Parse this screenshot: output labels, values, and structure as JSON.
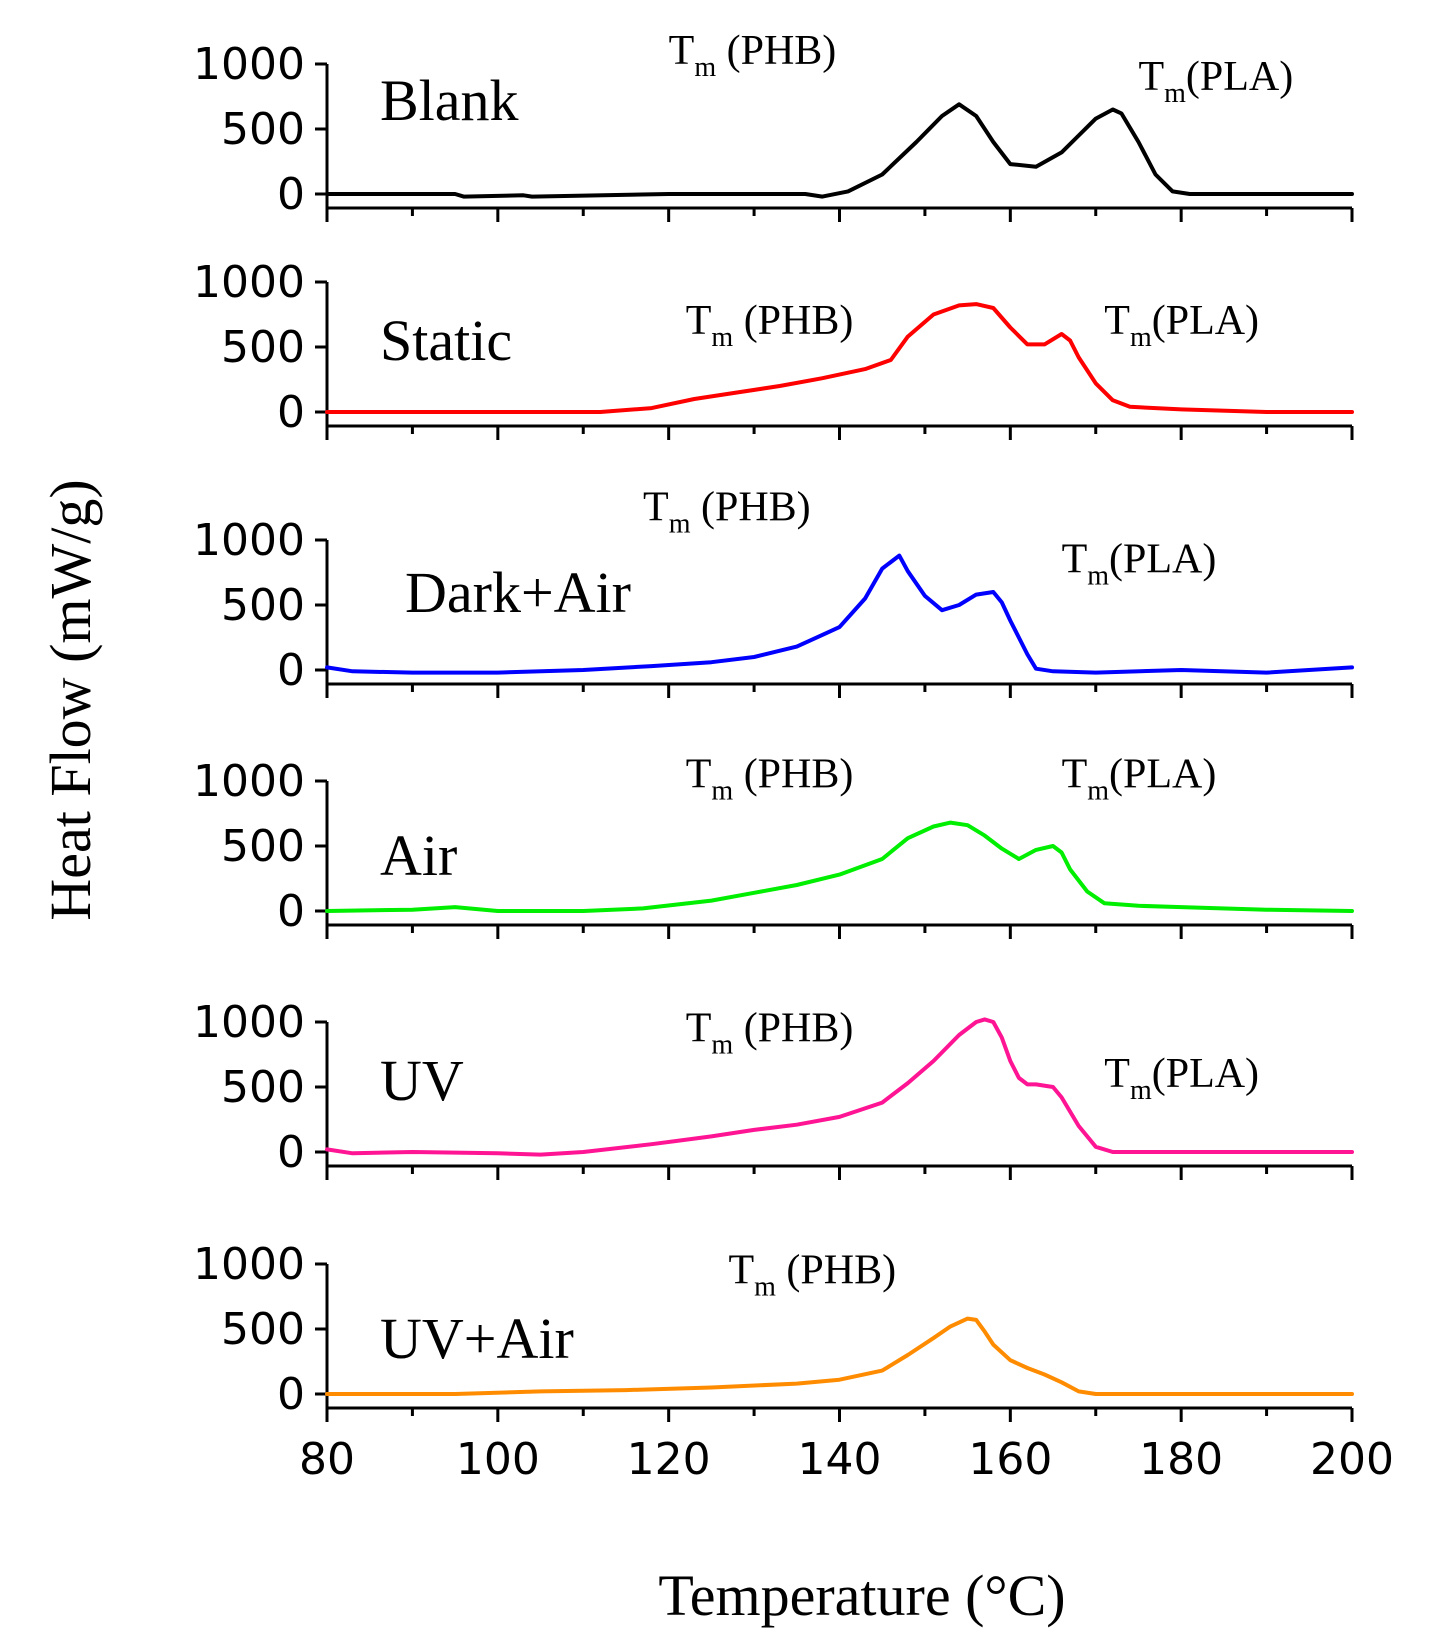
{
  "chart_data": {
    "type": "line",
    "layout": "stacked-panels",
    "xlabel": "Temperature (°C)",
    "ylabel": "Heat Flow (mW/g)",
    "xlim": [
      80,
      200
    ],
    "x_ticks": [
      "80",
      "100",
      "120",
      "140",
      "160",
      "180",
      "200"
    ],
    "y_ticks": [
      "0",
      "500",
      "1000"
    ],
    "annotation_sub": "m",
    "panels": [
      {
        "name": "Blank",
        "color": "#000000",
        "ylim": [
          -100,
          1000
        ],
        "annotations": [
          {
            "base": "T",
            "text": " (PHB)",
            "at_x": 120,
            "at_y": 1000
          },
          {
            "base": "T",
            "text": "(PLA)",
            "at_x": 175,
            "at_y": 800
          }
        ],
        "x": [
          80,
          95,
          96,
          103,
          104,
          120,
          136,
          138,
          141,
          145,
          149,
          152,
          154,
          156,
          158,
          160,
          163,
          166,
          168,
          170,
          172,
          173,
          175,
          177,
          179,
          181,
          200
        ],
        "y": [
          0,
          0,
          -20,
          -10,
          -20,
          0,
          0,
          -20,
          20,
          150,
          400,
          600,
          690,
          600,
          400,
          230,
          210,
          320,
          450,
          580,
          650,
          620,
          400,
          150,
          20,
          0,
          0
        ]
      },
      {
        "name": "Static",
        "color": "#ff0000",
        "ylim": [
          -100,
          1000
        ],
        "annotations": [
          {
            "base": "T",
            "text": " (PHB)",
            "at_x": 122,
            "at_y": 600
          },
          {
            "base": "T",
            "text": "(PLA)",
            "at_x": 171,
            "at_y": 600
          }
        ],
        "x": [
          80,
          95,
          112,
          118,
          123,
          128,
          133,
          138,
          143,
          146,
          148,
          151,
          154,
          156,
          158,
          160,
          162,
          164,
          166,
          167,
          168,
          170,
          172,
          174,
          180,
          190,
          200
        ],
        "y": [
          0,
          0,
          0,
          30,
          100,
          150,
          200,
          260,
          330,
          400,
          580,
          750,
          820,
          830,
          800,
          650,
          520,
          520,
          600,
          550,
          420,
          220,
          90,
          40,
          20,
          0,
          0
        ]
      },
      {
        "name": "Dark+Air",
        "color": "#0000ff",
        "ylim": [
          -100,
          1000
        ],
        "annotations": [
          {
            "base": "T",
            "text": " (PHB)",
            "at_x": 117,
            "at_y": 1150
          },
          {
            "base": "T",
            "text": "(PLA)",
            "at_x": 166,
            "at_y": 750
          }
        ],
        "x": [
          80,
          83,
          90,
          100,
          110,
          118,
          125,
          130,
          135,
          140,
          143,
          145,
          147,
          148,
          150,
          152,
          154,
          156,
          158,
          159,
          160,
          162,
          163,
          165,
          170,
          180,
          190,
          200
        ],
        "y": [
          20,
          -10,
          -20,
          -20,
          0,
          30,
          60,
          100,
          180,
          330,
          550,
          780,
          880,
          760,
          570,
          460,
          500,
          580,
          600,
          520,
          380,
          120,
          10,
          -10,
          -20,
          0,
          -20,
          20
        ]
      },
      {
        "name": "Air",
        "color": "#00ee00",
        "ylim": [
          -100,
          1000
        ],
        "annotations": [
          {
            "base": "T",
            "text": " (PHB)",
            "at_x": 122,
            "at_y": 950
          },
          {
            "base": "T",
            "text": "(PLA)",
            "at_x": 166,
            "at_y": 950
          }
        ],
        "x": [
          80,
          90,
          95,
          100,
          110,
          117,
          125,
          130,
          135,
          140,
          145,
          148,
          151,
          153,
          155,
          157,
          159,
          161,
          163,
          165,
          166,
          167,
          169,
          171,
          175,
          180,
          190,
          200
        ],
        "y": [
          0,
          10,
          30,
          0,
          0,
          20,
          80,
          140,
          200,
          280,
          400,
          560,
          650,
          680,
          660,
          580,
          480,
          400,
          470,
          500,
          450,
          320,
          150,
          60,
          40,
          30,
          10,
          0
        ]
      },
      {
        "name": "UV",
        "color": "#ff1493",
        "ylim": [
          -100,
          1000
        ],
        "annotations": [
          {
            "base": "T",
            "text": " (PHB)",
            "at_x": 122,
            "at_y": 850
          },
          {
            "base": "T",
            "text": "(PLA)",
            "at_x": 171,
            "at_y": 500
          }
        ],
        "x": [
          80,
          83,
          90,
          100,
          105,
          110,
          118,
          125,
          130,
          135,
          140,
          145,
          148,
          151,
          154,
          156,
          157,
          158,
          159,
          160,
          161,
          162,
          163,
          165,
          166,
          168,
          170,
          172,
          180,
          190,
          200
        ],
        "y": [
          20,
          -10,
          0,
          -10,
          -20,
          0,
          60,
          120,
          170,
          210,
          270,
          380,
          530,
          700,
          900,
          1000,
          1020,
          1000,
          880,
          700,
          570,
          520,
          520,
          500,
          420,
          200,
          40,
          0,
          0,
          0,
          0
        ]
      },
      {
        "name": "UV+Air",
        "color": "#ff8c00",
        "ylim": [
          -100,
          1000
        ],
        "annotations": [
          {
            "base": "T",
            "text": " (PHB)",
            "at_x": 127,
            "at_y": 850
          }
        ],
        "x": [
          80,
          95,
          105,
          115,
          125,
          135,
          140,
          145,
          148,
          151,
          153,
          155,
          156,
          157,
          158,
          160,
          162,
          164,
          166,
          168,
          170,
          180,
          190,
          200
        ],
        "y": [
          0,
          0,
          20,
          30,
          50,
          80,
          110,
          180,
          300,
          430,
          520,
          580,
          570,
          480,
          380,
          260,
          200,
          150,
          90,
          20,
          0,
          0,
          0,
          0
        ]
      }
    ]
  }
}
